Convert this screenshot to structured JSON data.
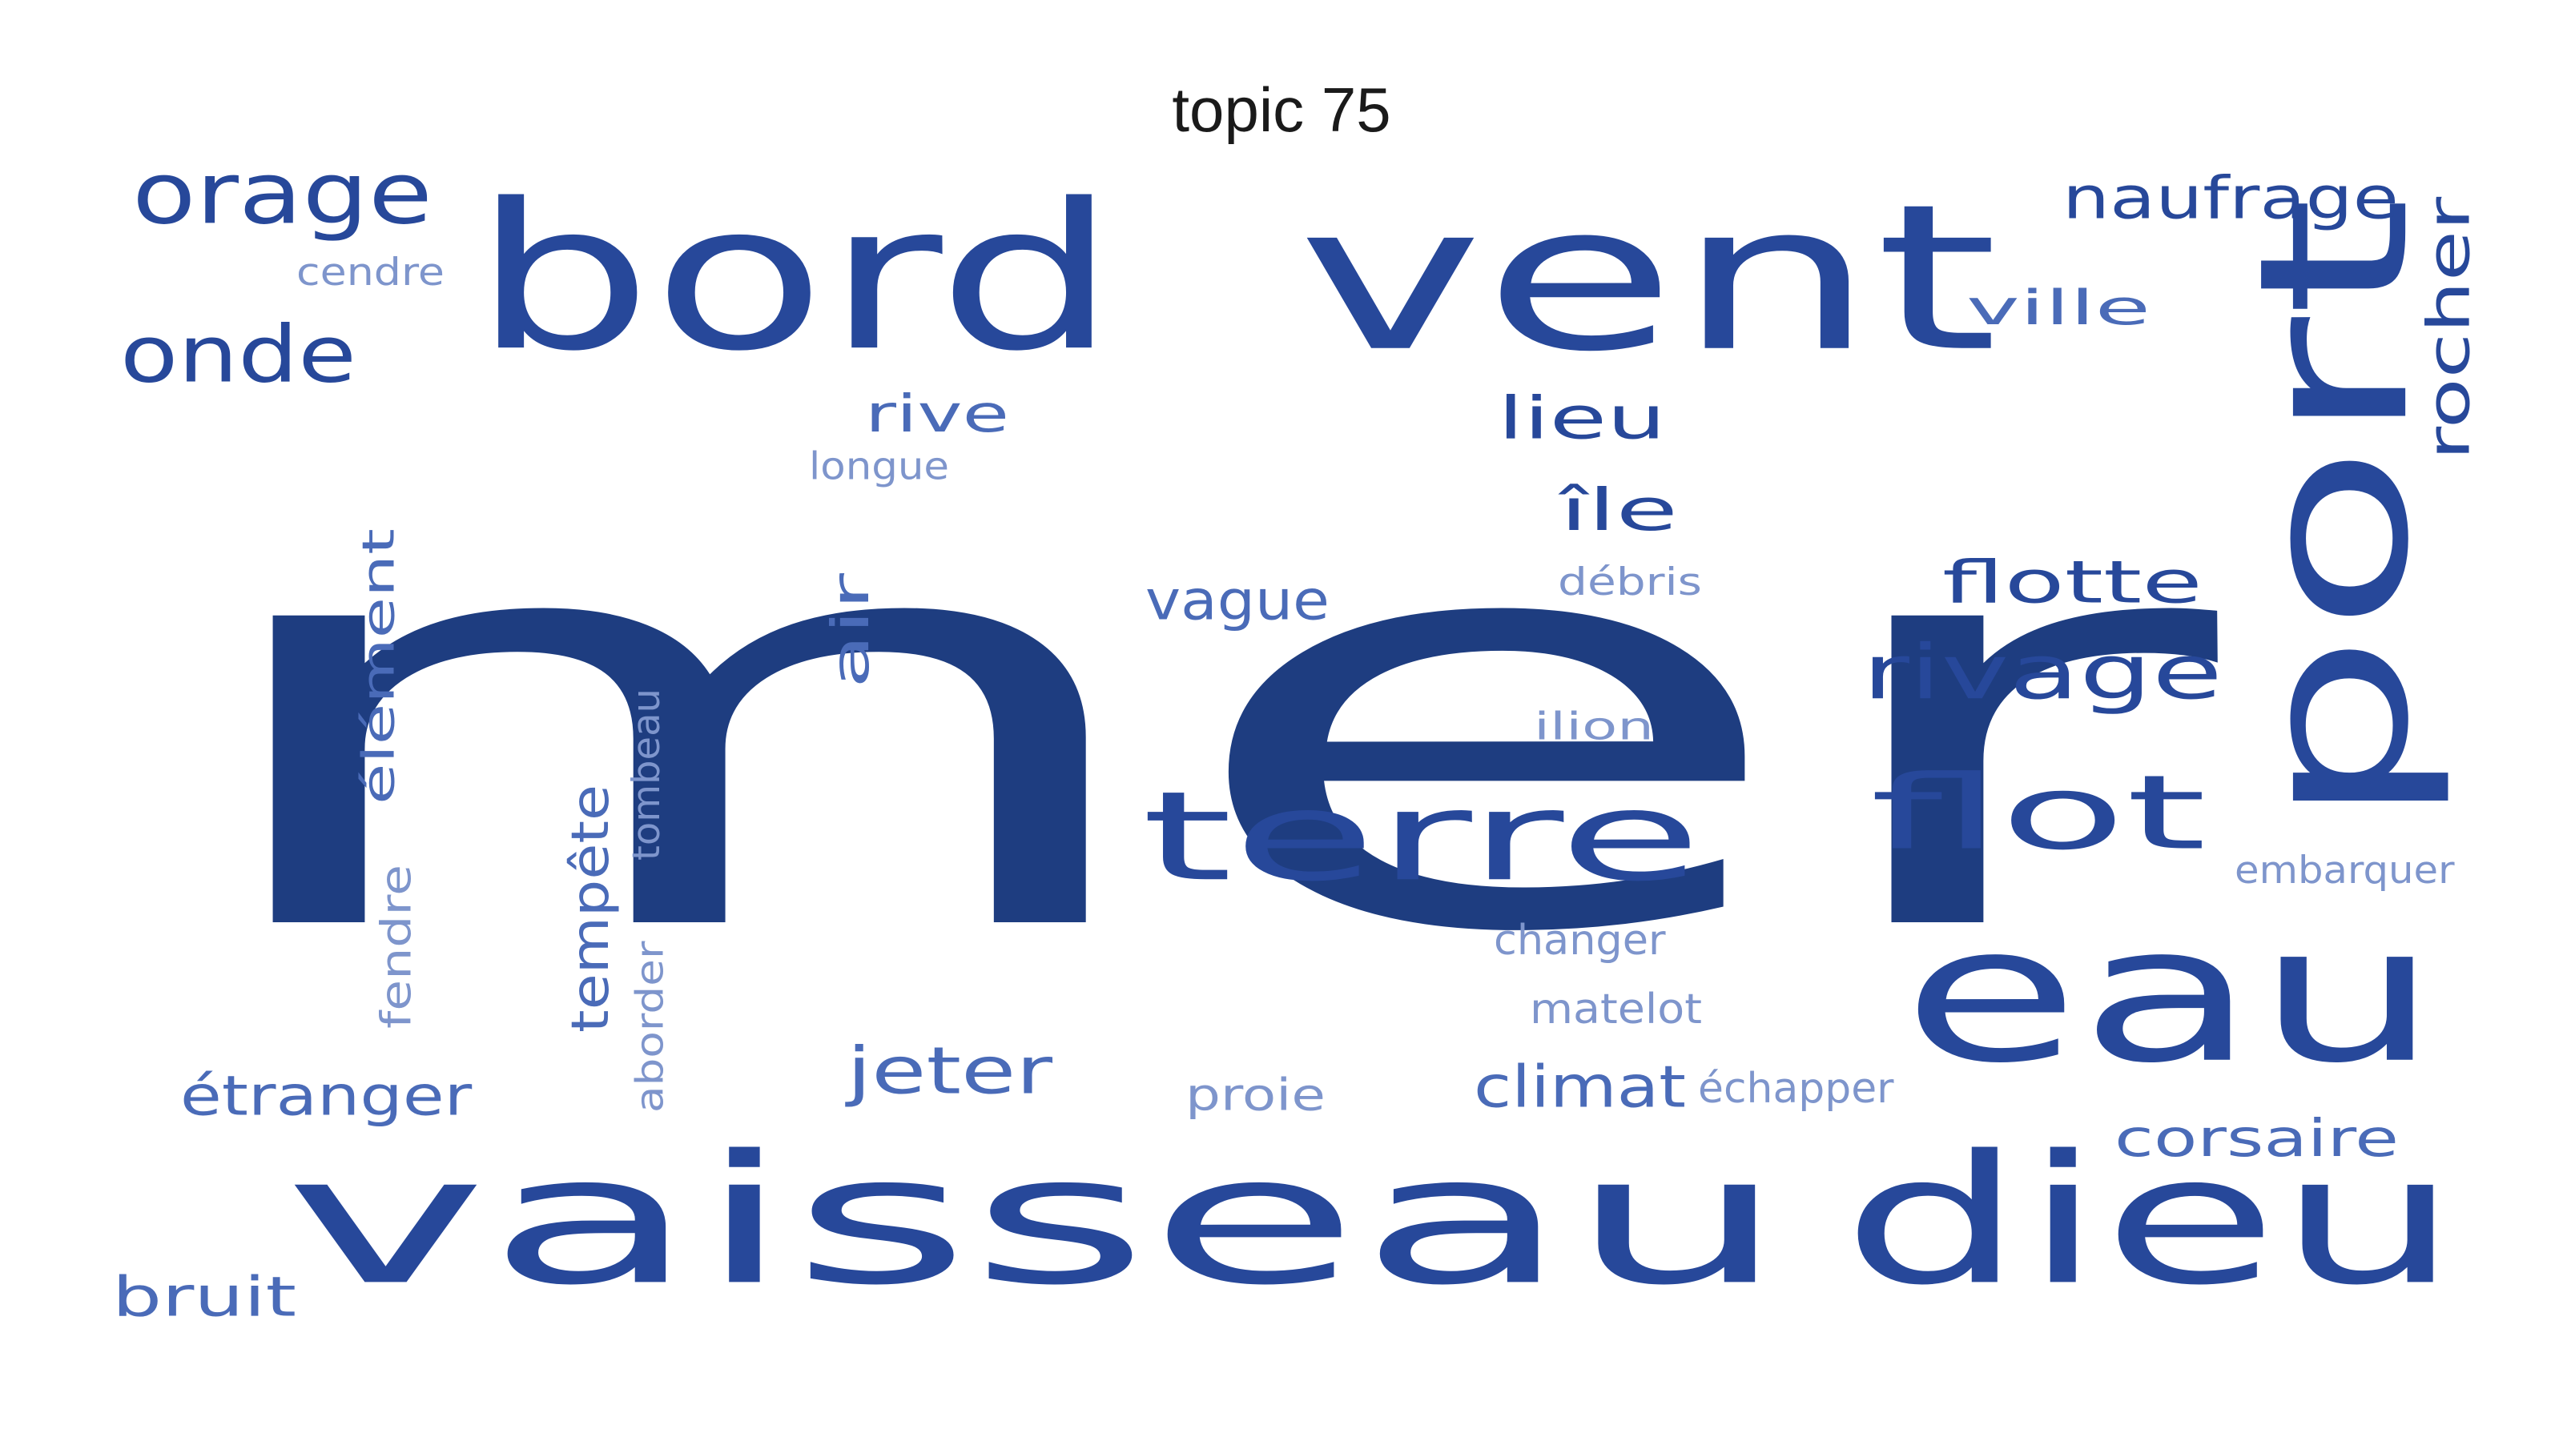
{
  "title": "topic 75",
  "colors": {
    "dark": "#1E3D80",
    "mid": "#27489A",
    "light": "#4A6BB8",
    "pale": "#7E95CC"
  },
  "words": [
    {
      "id": "mer",
      "text": "mer",
      "tone": "dark"
    },
    {
      "id": "bord",
      "text": "bord",
      "tone": "mid"
    },
    {
      "id": "vent",
      "text": "vent",
      "tone": "mid"
    },
    {
      "id": "vaisseau",
      "text": "vaisseau",
      "tone": "mid"
    },
    {
      "id": "dieu",
      "text": "dieu",
      "tone": "mid"
    },
    {
      "id": "eau",
      "text": "eau",
      "tone": "mid"
    },
    {
      "id": "port",
      "text": "port",
      "tone": "mid"
    },
    {
      "id": "terre",
      "text": "terre",
      "tone": "mid"
    },
    {
      "id": "flot",
      "text": "flot",
      "tone": "mid"
    },
    {
      "id": "rivage",
      "text": "rivage",
      "tone": "mid"
    },
    {
      "id": "orage",
      "text": "orage",
      "tone": "mid"
    },
    {
      "id": "onde",
      "text": "onde",
      "tone": "mid"
    },
    {
      "id": "naufrage",
      "text": "naufrage",
      "tone": "mid"
    },
    {
      "id": "rocher",
      "text": "rocher",
      "tone": "mid"
    },
    {
      "id": "ville",
      "text": "ville",
      "tone": "light"
    },
    {
      "id": "lieu",
      "text": "lieu",
      "tone": "mid"
    },
    {
      "id": "ile",
      "text": "île",
      "tone": "mid"
    },
    {
      "id": "flotte",
      "text": "flotte",
      "tone": "mid"
    },
    {
      "id": "rive",
      "text": "rive",
      "tone": "light"
    },
    {
      "id": "longue",
      "text": "longue",
      "tone": "pale"
    },
    {
      "id": "cendre",
      "text": "cendre",
      "tone": "pale"
    },
    {
      "id": "debris",
      "text": "débris",
      "tone": "pale"
    },
    {
      "id": "vague",
      "text": "vague",
      "tone": "light"
    },
    {
      "id": "air",
      "text": "air",
      "tone": "light"
    },
    {
      "id": "element",
      "text": "élément",
      "tone": "light"
    },
    {
      "id": "ilion",
      "text": "ilion",
      "tone": "pale"
    },
    {
      "id": "tombeau",
      "text": "tombeau",
      "tone": "pale"
    },
    {
      "id": "tempete",
      "text": "tempête",
      "tone": "light"
    },
    {
      "id": "fendre",
      "text": "fendre",
      "tone": "pale"
    },
    {
      "id": "aborder",
      "text": "aborder",
      "tone": "pale"
    },
    {
      "id": "etranger",
      "text": "étranger",
      "tone": "light"
    },
    {
      "id": "jeter",
      "text": "jeter",
      "tone": "light"
    },
    {
      "id": "proie",
      "text": "proie",
      "tone": "pale"
    },
    {
      "id": "climat",
      "text": "climat",
      "tone": "light"
    },
    {
      "id": "echapper",
      "text": "échapper",
      "tone": "pale"
    },
    {
      "id": "changer",
      "text": "changer",
      "tone": "pale"
    },
    {
      "id": "matelot",
      "text": "matelot",
      "tone": "pale"
    },
    {
      "id": "embarquer",
      "text": "embarquer",
      "tone": "pale"
    },
    {
      "id": "corsaire",
      "text": "corsaire",
      "tone": "light"
    },
    {
      "id": "bruit",
      "text": "bruit",
      "tone": "light"
    }
  ]
}
